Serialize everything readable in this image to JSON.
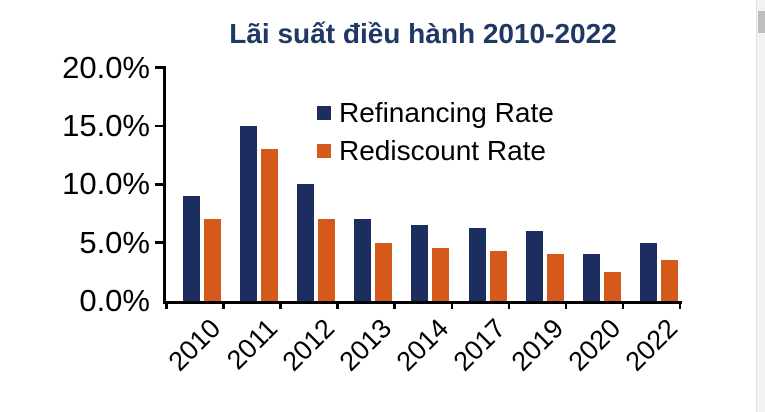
{
  "chart_data": {
    "type": "bar",
    "title": "Lãi suất điều hành 2010-2022",
    "title_color": "#1F3864",
    "axis_color": "#000000",
    "grid": false,
    "legend_position": "inside-top",
    "categories": [
      "2010",
      "2011",
      "2012",
      "2013",
      "2014",
      "2017",
      "2019",
      "2020",
      "2022"
    ],
    "series": [
      {
        "name": "Refinancing Rate",
        "color": "#1B2E5F",
        "values": [
          9.0,
          15.0,
          10.0,
          7.0,
          6.5,
          6.25,
          6.0,
          4.0,
          5.0
        ]
      },
      {
        "name": "Rediscount Rate",
        "color": "#D5591B",
        "values": [
          7.0,
          13.0,
          7.0,
          5.0,
          4.5,
          4.25,
          4.0,
          2.5,
          3.5
        ]
      }
    ],
    "xlabel": "",
    "ylabel": "",
    "y_axis": {
      "min": 0,
      "max": 20,
      "tick_step": 5,
      "tick_labels": [
        "0.0%",
        "5.0%",
        "10.0%",
        "15.0%",
        "20.0%"
      ]
    }
  }
}
